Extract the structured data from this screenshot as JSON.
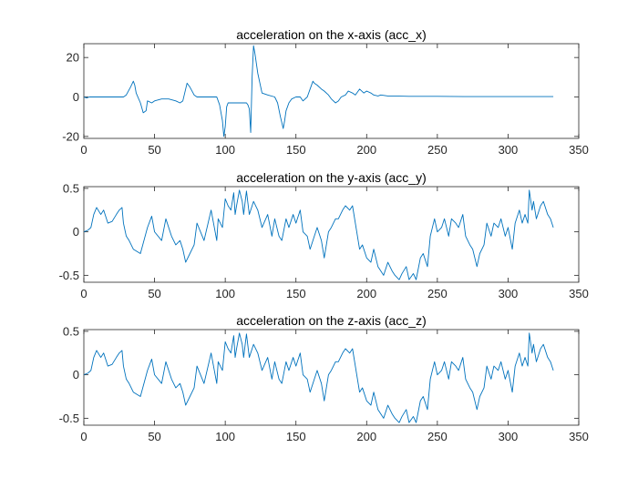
{
  "chart_data": [
    {
      "type": "line",
      "title": "acceleration on the x-axis (acc_x)",
      "xlabel": "",
      "ylabel": "",
      "xlim": [
        0,
        350
      ],
      "ylim": [
        -21,
        27
      ],
      "xticks": [
        0,
        50,
        100,
        150,
        200,
        250,
        300,
        350
      ],
      "yticks": [
        -20,
        0,
        20
      ],
      "grid": false,
      "series": [
        {
          "color": "#0072BD",
          "x": [
            0,
            2,
            4,
            10,
            20,
            28,
            30,
            33,
            35,
            36,
            37,
            40,
            42,
            44,
            45,
            48,
            50,
            55,
            60,
            65,
            68,
            70,
            72,
            73,
            75,
            78,
            80,
            85,
            90,
            94,
            96,
            98,
            99,
            100,
            101,
            102,
            104,
            105,
            107,
            110,
            115,
            116,
            117,
            118,
            119,
            120,
            121,
            123,
            126,
            130,
            135,
            137,
            139,
            141,
            142,
            143,
            145,
            147,
            150,
            153,
            155,
            158,
            160,
            162,
            163,
            165,
            168,
            170,
            173,
            175,
            178,
            180,
            182,
            185,
            187,
            190,
            192,
            195,
            198,
            200,
            203,
            205,
            208,
            210,
            215,
            220,
            230,
            250,
            270,
            290,
            310,
            320,
            330,
            332
          ],
          "values": [
            0,
            -0.5,
            0,
            0,
            0,
            0,
            1,
            5,
            8,
            6,
            2,
            -3,
            -8,
            -7,
            -2,
            -3,
            -2,
            -1,
            -1,
            -2,
            -3,
            -2,
            4,
            7,
            5,
            1,
            0,
            0,
            0,
            0,
            -4,
            -12,
            -20,
            -15,
            -5,
            -3,
            -3,
            -3,
            -3,
            -3,
            -3,
            -4,
            -6,
            -18,
            10,
            26,
            22,
            12,
            2,
            1,
            0,
            -3,
            -10,
            -16,
            -12,
            -7,
            -3,
            -1,
            0,
            0,
            -2,
            0,
            4,
            8,
            7,
            6,
            4,
            3,
            1,
            -1,
            -3,
            -2,
            0,
            1,
            3,
            2,
            1,
            4,
            2,
            3,
            2,
            1,
            0.5,
            1,
            0.5,
            0.5,
            0.3,
            0.3,
            0.2,
            0.2,
            0.2,
            0.2,
            0.2,
            0.2
          ]
        }
      ]
    },
    {
      "type": "line",
      "title": "acceleration on the y-axis (acc_y)",
      "xlabel": "",
      "ylabel": "",
      "xlim": [
        0,
        350
      ],
      "ylim": [
        -0.58,
        0.52
      ],
      "xticks": [
        0,
        50,
        100,
        150,
        200,
        250,
        300,
        350
      ],
      "yticks": [
        -0.5,
        0,
        0.5
      ],
      "grid": false,
      "series": [
        {
          "color": "#0072BD",
          "x": [
            0,
            3,
            5,
            7,
            9,
            12,
            14,
            17,
            20,
            23,
            25,
            27,
            28,
            30,
            32,
            35,
            40,
            45,
            48,
            50,
            55,
            58,
            62,
            65,
            68,
            70,
            72,
            75,
            78,
            80,
            85,
            90,
            94,
            95,
            98,
            100,
            102,
            104,
            106,
            107,
            108,
            110,
            112,
            113,
            115,
            117,
            120,
            123,
            126,
            130,
            133,
            135,
            138,
            140,
            143,
            145,
            148,
            150,
            153,
            155,
            158,
            160,
            163,
            165,
            168,
            170,
            173,
            175,
            178,
            180,
            183,
            185,
            188,
            190,
            193,
            195,
            197,
            200,
            203,
            205,
            208,
            210,
            212,
            215,
            218,
            220,
            223,
            225,
            228,
            230,
            233,
            235,
            238,
            240,
            243,
            245,
            248,
            250,
            253,
            255,
            258,
            260,
            263,
            265,
            268,
            270,
            273,
            275,
            278,
            280,
            283,
            285,
            288,
            290,
            293,
            295,
            298,
            300,
            303,
            305,
            308,
            310,
            312,
            314,
            315,
            317,
            318,
            320,
            323,
            325,
            328,
            330,
            332
          ],
          "values": [
            0,
            0.02,
            0.05,
            0.2,
            0.28,
            0.2,
            0.25,
            0.1,
            0.12,
            0.2,
            0.25,
            0.28,
            0.1,
            -0.05,
            -0.1,
            -0.2,
            -0.25,
            0.05,
            0.18,
            0,
            -0.1,
            0.15,
            -0.05,
            -0.15,
            -0.1,
            -0.2,
            -0.35,
            -0.25,
            -0.15,
            0.1,
            -0.1,
            0.25,
            -0.1,
            0.15,
            0.05,
            0.38,
            0.3,
            0.25,
            0.45,
            0.2,
            0.3,
            0.48,
            0.35,
            0.2,
            0.47,
            0.2,
            0.35,
            0.25,
            0.05,
            0.2,
            -0.05,
            0.15,
            -0.05,
            -0.1,
            0.15,
            0.05,
            0.2,
            0.1,
            0.25,
            0,
            -0.05,
            -0.2,
            -0.05,
            0.05,
            -0.1,
            -0.3,
            0,
            0.05,
            0.15,
            0.15,
            0.25,
            0.3,
            0.25,
            0.3,
            0,
            -0.2,
            -0.15,
            -0.3,
            -0.35,
            -0.2,
            -0.4,
            -0.45,
            -0.5,
            -0.35,
            -0.45,
            -0.5,
            -0.55,
            -0.48,
            -0.4,
            -0.55,
            -0.48,
            -0.55,
            -0.3,
            -0.25,
            -0.4,
            -0.05,
            0.15,
            0,
            0.05,
            0.15,
            -0.05,
            0.15,
            0.1,
            0.05,
            0.2,
            -0.05,
            -0.15,
            -0.2,
            -0.4,
            -0.25,
            -0.15,
            0.1,
            -0.05,
            0.1,
            0.05,
            0.15,
            -0.05,
            0.05,
            -0.2,
            0.1,
            0.25,
            0.1,
            0.2,
            0.1,
            0.48,
            0.25,
            0.35,
            0.15,
            0.3,
            0.35,
            0.2,
            0.15,
            0.05
          ]
        }
      ]
    },
    {
      "type": "line",
      "title": "acceleration on the z-axis (acc_z)",
      "xlabel": "",
      "ylabel": "",
      "xlim": [
        0,
        350
      ],
      "ylim": [
        -0.58,
        0.52
      ],
      "xticks": [
        0,
        50,
        100,
        150,
        200,
        250,
        300,
        350
      ],
      "yticks": [
        -0.5,
        0,
        0.5
      ],
      "grid": false,
      "series": [
        {
          "color": "#0072BD",
          "x": [
            0,
            3,
            5,
            7,
            9,
            12,
            14,
            17,
            20,
            23,
            25,
            27,
            28,
            30,
            32,
            35,
            40,
            45,
            48,
            50,
            55,
            58,
            62,
            65,
            68,
            70,
            72,
            75,
            78,
            80,
            85,
            90,
            94,
            95,
            98,
            100,
            102,
            104,
            106,
            107,
            108,
            110,
            112,
            113,
            115,
            117,
            120,
            123,
            126,
            130,
            133,
            135,
            138,
            140,
            143,
            145,
            148,
            150,
            153,
            155,
            158,
            160,
            163,
            165,
            168,
            170,
            173,
            175,
            178,
            180,
            183,
            185,
            188,
            190,
            193,
            195,
            197,
            200,
            203,
            205,
            208,
            210,
            212,
            215,
            218,
            220,
            223,
            225,
            228,
            230,
            233,
            235,
            238,
            240,
            243,
            245,
            248,
            250,
            253,
            255,
            258,
            260,
            263,
            265,
            268,
            270,
            273,
            275,
            278,
            280,
            283,
            285,
            288,
            290,
            293,
            295,
            298,
            300,
            303,
            305,
            308,
            310,
            312,
            314,
            315,
            317,
            318,
            320,
            323,
            325,
            328,
            330,
            332
          ],
          "values": [
            0,
            0.02,
            0.05,
            0.2,
            0.28,
            0.2,
            0.25,
            0.1,
            0.12,
            0.2,
            0.25,
            0.28,
            0.1,
            -0.05,
            -0.1,
            -0.2,
            -0.25,
            0.05,
            0.18,
            0,
            -0.1,
            0.15,
            -0.05,
            -0.15,
            -0.1,
            -0.2,
            -0.35,
            -0.25,
            -0.15,
            0.1,
            -0.1,
            0.25,
            -0.1,
            0.15,
            0.05,
            0.38,
            0.3,
            0.25,
            0.45,
            0.2,
            0.3,
            0.48,
            0.35,
            0.2,
            0.47,
            0.2,
            0.35,
            0.25,
            0.05,
            0.2,
            -0.05,
            0.15,
            -0.05,
            -0.1,
            0.15,
            0.05,
            0.2,
            0.1,
            0.25,
            0,
            -0.05,
            -0.2,
            -0.05,
            0.05,
            -0.1,
            -0.3,
            0,
            0.05,
            0.15,
            0.15,
            0.25,
            0.3,
            0.25,
            0.3,
            0,
            -0.2,
            -0.15,
            -0.3,
            -0.35,
            -0.2,
            -0.4,
            -0.45,
            -0.5,
            -0.35,
            -0.45,
            -0.5,
            -0.55,
            -0.48,
            -0.4,
            -0.55,
            -0.48,
            -0.55,
            -0.3,
            -0.25,
            -0.4,
            -0.05,
            0.15,
            0,
            0.05,
            0.15,
            -0.05,
            0.15,
            0.1,
            0.05,
            0.2,
            -0.05,
            -0.15,
            -0.2,
            -0.4,
            -0.25,
            -0.15,
            0.1,
            -0.05,
            0.1,
            0.05,
            0.15,
            -0.05,
            0.05,
            -0.2,
            0.1,
            0.25,
            0.1,
            0.2,
            0.1,
            0.48,
            0.25,
            0.35,
            0.15,
            0.3,
            0.35,
            0.2,
            0.15,
            0.05
          ]
        }
      ]
    }
  ]
}
